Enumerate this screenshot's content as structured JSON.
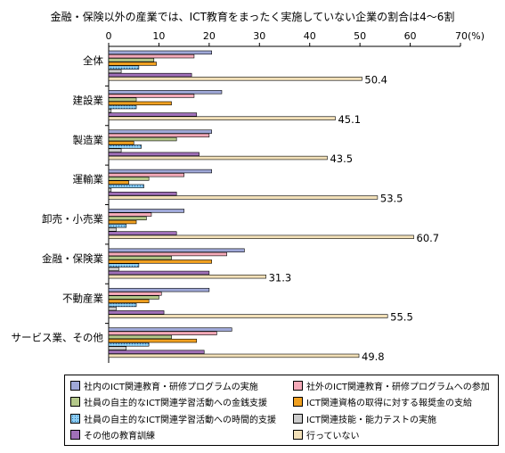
{
  "title": "金融・保険以外の産業では、ICT教育をまったく実施していない企業の割合は4～6割",
  "chart_data": {
    "type": "bar",
    "orientation": "horizontal",
    "x_ticks": [
      "0",
      "10",
      "20",
      "30",
      "40",
      "50",
      "60",
      "70(%)"
    ],
    "xlim": [
      0,
      70
    ],
    "grid": false,
    "legend_position": "bottom",
    "categories": [
      "全体",
      "建設業",
      "製造業",
      "運輸業",
      "卸売・小売業",
      "金融・保険業",
      "不動産業",
      "サービス業、その他"
    ],
    "series": [
      {
        "name": "社内のICT関連教育・研修プログラムの実施",
        "color": "#9fa8d8",
        "pattern": "plain",
        "values": [
          20.5,
          22.5,
          20.5,
          20.5,
          15.0,
          27.0,
          20.0,
          24.5
        ]
      },
      {
        "name": "社外のICT関連教育・研修プログラムへの参加",
        "color": "#f4a9b8",
        "pattern": "plain",
        "values": [
          17.0,
          17.0,
          20.0,
          15.0,
          8.5,
          23.5,
          10.5,
          21.5
        ]
      },
      {
        "name": "社員の自主的なICT関連学習活動への金銭支援",
        "color": "#b4c88a",
        "pattern": "plain",
        "values": [
          9.0,
          5.5,
          13.5,
          8.0,
          7.5,
          12.5,
          10.0,
          12.5
        ]
      },
      {
        "name": "ICT関連資格の取得に対する報奨金の支給",
        "color": "#f0a020",
        "pattern": "plain",
        "values": [
          9.5,
          12.5,
          5.0,
          4.0,
          5.5,
          20.5,
          8.0,
          17.5
        ]
      },
      {
        "name": "社員の自主的なICT関連学習活動への時間的支援",
        "color": "#66b8e8",
        "pattern": "dots",
        "values": [
          6.0,
          5.5,
          6.5,
          7.0,
          3.5,
          6.0,
          5.5,
          8.0
        ]
      },
      {
        "name": "ICT関連技能・能力テストの実施",
        "color": "#cccccc",
        "pattern": "plain",
        "values": [
          2.5,
          0.5,
          2.5,
          0.5,
          1.5,
          2.0,
          1.5,
          3.5
        ]
      },
      {
        "name": "その他の教育訓練",
        "color": "#a070b8",
        "pattern": "plain",
        "values": [
          16.5,
          17.5,
          18.0,
          13.5,
          13.5,
          20.0,
          11.0,
          19.0
        ]
      },
      {
        "name": "行っていない",
        "color": "#f2e0b8",
        "pattern": "plain",
        "values": [
          50.4,
          45.1,
          43.5,
          53.5,
          60.7,
          31.3,
          55.5,
          49.8
        ],
        "labels": [
          "50.4",
          "45.1",
          "43.5",
          "53.5",
          "60.7",
          "31.3",
          "55.5",
          "49.8"
        ]
      }
    ]
  }
}
